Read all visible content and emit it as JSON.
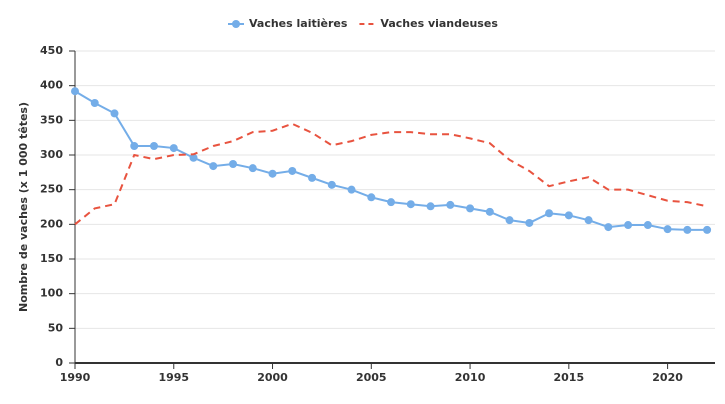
{
  "chart_data": {
    "type": "line",
    "y_label": "Nombre de vaches (x 1 000 têtes)",
    "x": [
      1990,
      1991,
      1992,
      1993,
      1994,
      1995,
      1996,
      1997,
      1998,
      1999,
      2000,
      2001,
      2002,
      2003,
      2004,
      2005,
      2006,
      2007,
      2008,
      2009,
      2010,
      2011,
      2012,
      2013,
      2014,
      2015,
      2016,
      2017,
      2018,
      2019,
      2020,
      2021,
      2022
    ],
    "series": [
      {
        "name": "Vaches laitières",
        "color": "#74ade8",
        "dashed": false,
        "markers": true,
        "values": [
          392,
          375,
          360,
          313,
          313,
          310,
          296,
          284,
          287,
          281,
          273,
          277,
          267,
          257,
          250,
          239,
          232,
          229,
          226,
          228,
          223,
          218,
          206,
          202,
          216,
          213,
          206,
          196,
          199,
          199,
          193,
          192,
          192
        ]
      },
      {
        "name": "Vaches viandeuses",
        "color": "#e8533f",
        "dashed": true,
        "markers": false,
        "values": [
          200,
          223,
          229,
          300,
          294,
          300,
          301,
          313,
          320,
          333,
          335,
          345,
          332,
          314,
          320,
          329,
          333,
          333,
          330,
          330,
          324,
          317,
          293,
          277,
          255,
          262,
          268,
          250,
          250,
          242,
          234,
          232,
          226
        ]
      }
    ],
    "xlim": [
      1990,
      2022.4
    ],
    "xticks": [
      1990,
      1995,
      2000,
      2005,
      2010,
      2015,
      2020
    ],
    "ylim": [
      0,
      450
    ],
    "yticks": [
      0,
      50,
      100,
      150,
      200,
      250,
      300,
      350,
      400,
      450
    ],
    "grid": true,
    "legend": "top"
  }
}
